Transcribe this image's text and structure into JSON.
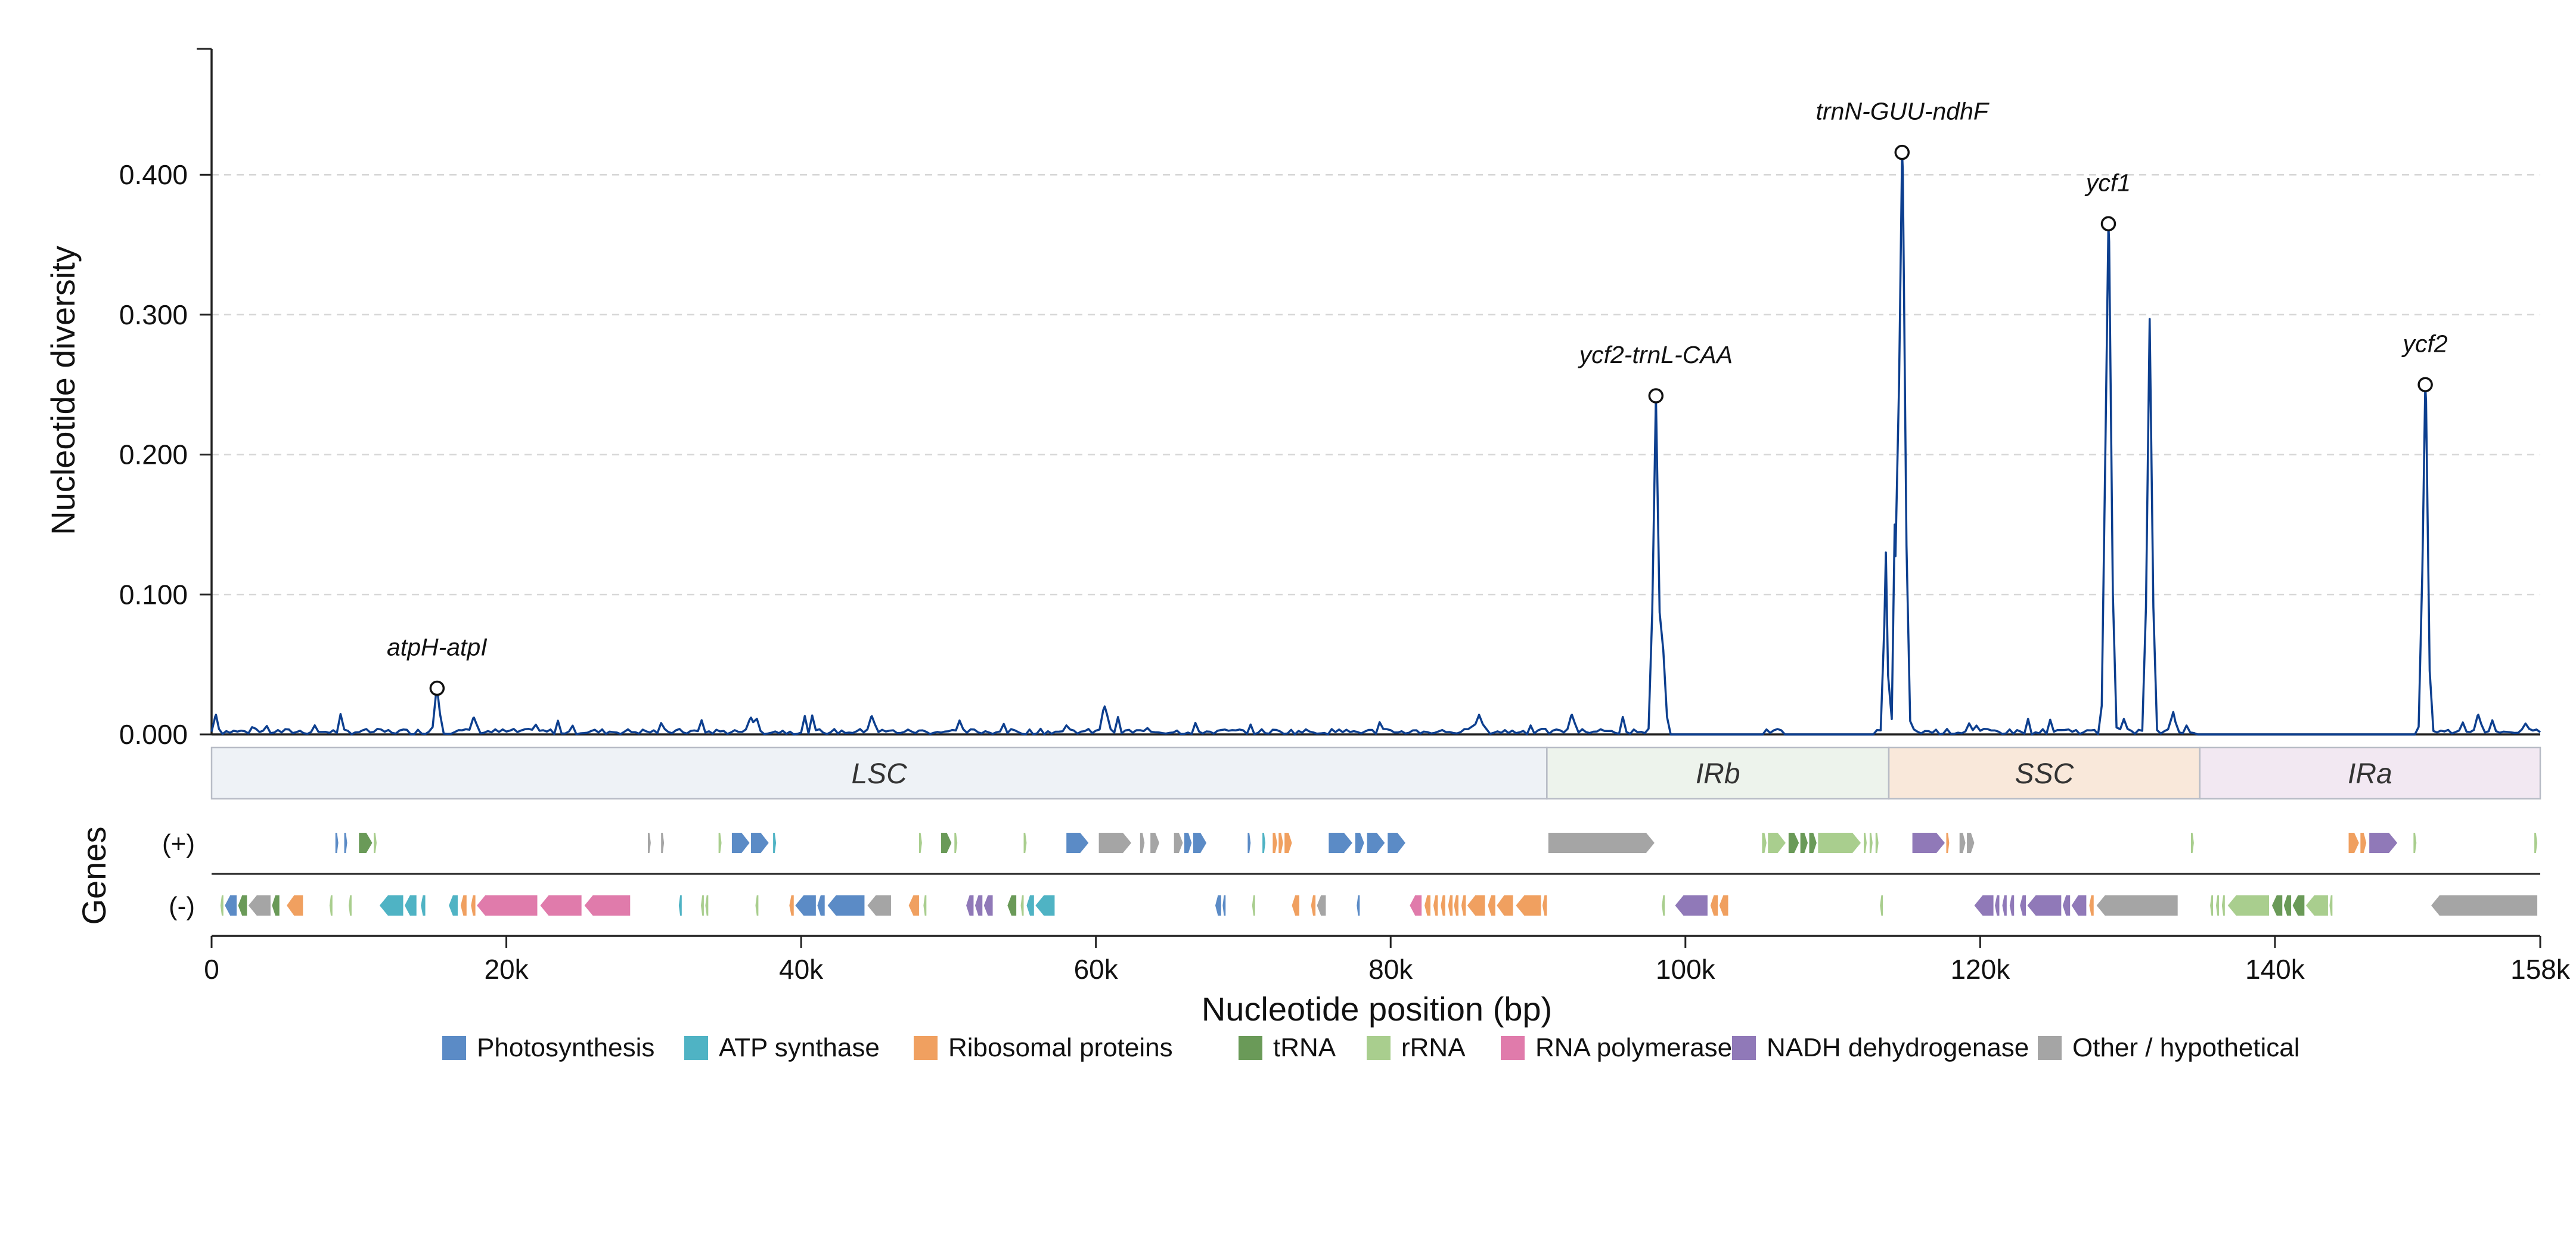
{
  "chart_data": {
    "type": "line",
    "xlabel": "Nucleotide position (bp)",
    "ylabel": "Nucleotide diversity",
    "xlim": [
      0,
      158000
    ],
    "ylim": [
      0,
      0.49
    ],
    "x_ticks": [
      {
        "value": 0,
        "label": "0"
      },
      {
        "value": 20000,
        "label": "20k"
      },
      {
        "value": 40000,
        "label": "40k"
      },
      {
        "value": 60000,
        "label": "60k"
      },
      {
        "value": 80000,
        "label": "80k"
      },
      {
        "value": 100000,
        "label": "100k"
      },
      {
        "value": 120000,
        "label": "120k"
      },
      {
        "value": 140000,
        "label": "140k"
      },
      {
        "value": 158000,
        "label": "158k"
      }
    ],
    "y_ticks": [
      {
        "value": 0.0,
        "label": "0.000"
      },
      {
        "value": 0.1,
        "label": "0.100"
      },
      {
        "value": 0.2,
        "label": "0.200"
      },
      {
        "value": 0.3,
        "label": "0.300"
      },
      {
        "value": 0.4,
        "label": "0.400"
      }
    ],
    "grid": "horizontal dashed",
    "line_color": "#0d3f8f",
    "series": [
      {
        "points": [
          [
            0,
            0.002
          ],
          [
            300,
            0.014
          ],
          [
            700,
            0.001
          ],
          [
            1500,
            0.0
          ],
          [
            2500,
            0.003
          ],
          [
            3500,
            0.0
          ],
          [
            4500,
            0.004
          ],
          [
            5500,
            0.001
          ],
          [
            6500,
            0.003
          ],
          [
            7500,
            0.0
          ],
          [
            8500,
            0.004
          ],
          [
            9500,
            0.001
          ],
          [
            10500,
            0.003
          ],
          [
            11500,
            0.0
          ],
          [
            12500,
            0.004
          ],
          [
            13500,
            0.001
          ],
          [
            14500,
            0.002
          ],
          [
            15000,
            0.004
          ],
          [
            15300,
            0.033
          ],
          [
            15600,
            0.03
          ],
          [
            15900,
            0.0
          ],
          [
            17000,
            0.001
          ],
          [
            17600,
            0.012
          ],
          [
            18000,
            0.011
          ],
          [
            18400,
            0.001
          ],
          [
            19500,
            0.004
          ],
          [
            20500,
            0.002
          ],
          [
            21500,
            0.005
          ],
          [
            22500,
            0.001
          ],
          [
            23500,
            0.004
          ],
          [
            24500,
            0.001
          ],
          [
            25500,
            0.003
          ],
          [
            26500,
            0.0
          ],
          [
            27500,
            0.004
          ],
          [
            28500,
            0.002
          ],
          [
            29500,
            0.0
          ],
          [
            30000,
            0.003
          ],
          [
            31000,
            0.006
          ],
          [
            32000,
            0.002
          ],
          [
            33000,
            0.007
          ],
          [
            28800,
            0.002
          ],
          [
            29500,
            0.001
          ]
        ]
      }
    ],
    "peaks": [
      {
        "label": "atpH-atpI",
        "x": 15300,
        "y": 0.033
      },
      {
        "label": "ycf2-trnL-CAA",
        "x": 98000,
        "y": 0.242
      },
      {
        "label": "trnN-GUU-ndhF",
        "x": 114700,
        "y": 0.416
      },
      {
        "label": "ycf1",
        "x": 128700,
        "y": 0.365
      },
      {
        "label": "ycf2",
        "x": 150200,
        "y": 0.25
      }
    ],
    "regions": [
      {
        "label": "LSC",
        "start": 0,
        "end": 90600,
        "color": "#eef2f6"
      },
      {
        "label": "IRb",
        "start": 90600,
        "end": 113800,
        "color": "#edf3ec"
      },
      {
        "label": "SSC",
        "start": 113800,
        "end": 134900,
        "color": "#f9e8da"
      },
      {
        "label": "IRa",
        "start": 134900,
        "end": 158000,
        "color": "#f2e8f2"
      }
    ],
    "genes_axis_label": "Genes",
    "strands": {
      "plus": "(+)",
      "minus": "(-)"
    },
    "gene_categories": [
      {
        "name": "Photosynthesis",
        "color": "#5b8bc6"
      },
      {
        "name": "ATP synthase",
        "color": "#4fb3c4"
      },
      {
        "name": "Ribosomal proteins",
        "color": "#f0a060"
      },
      {
        "name": "tRNA",
        "color": "#6a9a58"
      },
      {
        "name": "rRNA",
        "color": "#a9ce8e"
      },
      {
        "name": "RNA polymerase",
        "color": "#e07bab"
      },
      {
        "name": "NADH dehydrogenase",
        "color": "#9079b8"
      },
      {
        "name": "Other / hypothetical",
        "color": "#a5a5a5"
      }
    ],
    "genes": [
      {
        "strand": "+",
        "start": 8400,
        "end": 8600,
        "cat": 0
      },
      {
        "strand": "+",
        "start": 9000,
        "end": 9200,
        "cat": 0
      },
      {
        "strand": "+",
        "start": 10000,
        "end": 10900,
        "cat": 3
      },
      {
        "strand": "+",
        "start": 11000,
        "end": 11200,
        "cat": 4
      },
      {
        "strand": "+",
        "start": 29600,
        "end": 29800,
        "cat": 7
      },
      {
        "strand": "+",
        "start": 30500,
        "end": 30700,
        "cat": 7
      },
      {
        "strand": "+",
        "start": 34400,
        "end": 34600,
        "cat": 4
      },
      {
        "strand": "+",
        "start": 35300,
        "end": 36500,
        "cat": 0
      },
      {
        "strand": "+",
        "start": 36600,
        "end": 37800,
        "cat": 0
      },
      {
        "strand": "+",
        "start": 38100,
        "end": 38300,
        "cat": 1
      },
      {
        "strand": "+",
        "start": 48000,
        "end": 48200,
        "cat": 4
      },
      {
        "strand": "+",
        "start": 49500,
        "end": 50200,
        "cat": 3
      },
      {
        "strand": "+",
        "start": 50400,
        "end": 50600,
        "cat": 4
      },
      {
        "strand": "+",
        "start": 55100,
        "end": 55300,
        "cat": 4
      },
      {
        "strand": "+",
        "start": 58000,
        "end": 59500,
        "cat": 0
      },
      {
        "strand": "+",
        "start": 60200,
        "end": 62400,
        "cat": 7
      },
      {
        "strand": "+",
        "start": 63000,
        "end": 63300,
        "cat": 7
      },
      {
        "strand": "+",
        "start": 63700,
        "end": 64300,
        "cat": 7
      },
      {
        "strand": "+",
        "start": 65300,
        "end": 65900,
        "cat": 7
      },
      {
        "strand": "+",
        "start": 66000,
        "end": 66500,
        "cat": 0
      },
      {
        "strand": "+",
        "start": 66600,
        "end": 67500,
        "cat": 0
      },
      {
        "strand": "+",
        "start": 70300,
        "end": 70500,
        "cat": 0
      },
      {
        "strand": "+",
        "start": 71300,
        "end": 71500,
        "cat": 1
      },
      {
        "strand": "+",
        "start": 72000,
        "end": 72300,
        "cat": 2
      },
      {
        "strand": "+",
        "start": 72400,
        "end": 72700,
        "cat": 2
      },
      {
        "strand": "+",
        "start": 72800,
        "end": 73300,
        "cat": 2
      },
      {
        "strand": "+",
        "start": 75800,
        "end": 77400,
        "cat": 0
      },
      {
        "strand": "+",
        "start": 77600,
        "end": 78200,
        "cat": 0
      },
      {
        "strand": "+",
        "start": 78400,
        "end": 79600,
        "cat": 0
      },
      {
        "strand": "+",
        "start": 79800,
        "end": 81000,
        "cat": 0
      },
      {
        "strand": "+",
        "start": 90700,
        "end": 97900,
        "cat": 7
      },
      {
        "strand": "+",
        "start": 105200,
        "end": 105500,
        "cat": 4
      },
      {
        "strand": "+",
        "start": 105600,
        "end": 106800,
        "cat": 4
      },
      {
        "strand": "+",
        "start": 107000,
        "end": 107700,
        "cat": 3
      },
      {
        "strand": "+",
        "start": 107800,
        "end": 108300,
        "cat": 3
      },
      {
        "strand": "+",
        "start": 108400,
        "end": 108900,
        "cat": 3
      },
      {
        "strand": "+",
        "start": 109000,
        "end": 111900,
        "cat": 4
      },
      {
        "strand": "+",
        "start": 112100,
        "end": 112300,
        "cat": 4
      },
      {
        "strand": "+",
        "start": 112500,
        "end": 112700,
        "cat": 4
      },
      {
        "strand": "+",
        "start": 112900,
        "end": 113100,
        "cat": 4
      },
      {
        "strand": "+",
        "start": 115400,
        "end": 117600,
        "cat": 6
      },
      {
        "strand": "+",
        "start": 117700,
        "end": 117900,
        "cat": 2
      },
      {
        "strand": "+",
        "start": 118600,
        "end": 119000,
        "cat": 7
      },
      {
        "strand": "+",
        "start": 119100,
        "end": 119600,
        "cat": 7
      },
      {
        "strand": "+",
        "start": 134300,
        "end": 134500,
        "cat": 4
      },
      {
        "strand": "+",
        "start": 145000,
        "end": 145700,
        "cat": 2
      },
      {
        "strand": "+",
        "start": 145800,
        "end": 146200,
        "cat": 2
      },
      {
        "strand": "+",
        "start": 146400,
        "end": 148300,
        "cat": 6
      },
      {
        "strand": "+",
        "start": 149400,
        "end": 149600,
        "cat": 4
      },
      {
        "strand": "+",
        "start": 157600,
        "end": 157800,
        "cat": 4
      },
      {
        "strand": "-",
        "start": 600,
        "end": 800,
        "cat": 4
      },
      {
        "strand": "-",
        "start": 900,
        "end": 1700,
        "cat": 0
      },
      {
        "strand": "-",
        "start": 1800,
        "end": 2400,
        "cat": 3
      },
      {
        "strand": "-",
        "start": 2500,
        "end": 4000,
        "cat": 7
      },
      {
        "strand": "-",
        "start": 4100,
        "end": 4600,
        "cat": 3
      },
      {
        "strand": "-",
        "start": 5100,
        "end": 6200,
        "cat": 2
      },
      {
        "strand": "-",
        "start": 8000,
        "end": 8200,
        "cat": 4
      },
      {
        "strand": "-",
        "start": 9300,
        "end": 9500,
        "cat": 4
      },
      {
        "strand": "-",
        "start": 11400,
        "end": 13000,
        "cat": 1
      },
      {
        "strand": "-",
        "start": 13100,
        "end": 13900,
        "cat": 1
      },
      {
        "strand": "-",
        "start": 14200,
        "end": 14500,
        "cat": 1
      },
      {
        "strand": "-",
        "start": 16100,
        "end": 16700,
        "cat": 1
      },
      {
        "strand": "-",
        "start": 16900,
        "end": 17300,
        "cat": 2
      },
      {
        "strand": "-",
        "start": 17600,
        "end": 17900,
        "cat": 2
      },
      {
        "strand": "-",
        "start": 18000,
        "end": 22100,
        "cat": 5
      },
      {
        "strand": "-",
        "start": 22300,
        "end": 25100,
        "cat": 5
      },
      {
        "strand": "-",
        "start": 25300,
        "end": 28400,
        "cat": 5
      },
      {
        "strand": "-",
        "start": 31700,
        "end": 31900,
        "cat": 1
      },
      {
        "strand": "-",
        "start": 33200,
        "end": 33400,
        "cat": 4
      },
      {
        "strand": "-",
        "start": 33500,
        "end": 33700,
        "cat": 4
      },
      {
        "strand": "-",
        "start": 36900,
        "end": 37100,
        "cat": 4
      },
      {
        "strand": "-",
        "start": 39200,
        "end": 39500,
        "cat": 2
      },
      {
        "strand": "-",
        "start": 39600,
        "end": 41000,
        "cat": 0
      },
      {
        "strand": "-",
        "start": 41100,
        "end": 41600,
        "cat": 0
      },
      {
        "strand": "-",
        "start": 41800,
        "end": 44300,
        "cat": 0
      },
      {
        "strand": "-",
        "start": 44500,
        "end": 46100,
        "cat": 7
      },
      {
        "strand": "-",
        "start": 47300,
        "end": 48000,
        "cat": 2
      },
      {
        "strand": "-",
        "start": 48300,
        "end": 48500,
        "cat": 4
      },
      {
        "strand": "-",
        "start": 51200,
        "end": 51700,
        "cat": 6
      },
      {
        "strand": "-",
        "start": 51800,
        "end": 52300,
        "cat": 6
      },
      {
        "strand": "-",
        "start": 52400,
        "end": 53000,
        "cat": 6
      },
      {
        "strand": "-",
        "start": 54000,
        "end": 54600,
        "cat": 3
      },
      {
        "strand": "-",
        "start": 54900,
        "end": 55100,
        "cat": 4
      },
      {
        "strand": "-",
        "start": 55300,
        "end": 55800,
        "cat": 1
      },
      {
        "strand": "-",
        "start": 55900,
        "end": 57200,
        "cat": 1
      },
      {
        "strand": "-",
        "start": 68100,
        "end": 68500,
        "cat": 0
      },
      {
        "strand": "-",
        "start": 68600,
        "end": 68800,
        "cat": 0
      },
      {
        "strand": "-",
        "start": 70600,
        "end": 70800,
        "cat": 4
      },
      {
        "strand": "-",
        "start": 73300,
        "end": 73800,
        "cat": 2
      },
      {
        "strand": "-",
        "start": 74600,
        "end": 74900,
        "cat": 2
      },
      {
        "strand": "-",
        "start": 75000,
        "end": 75600,
        "cat": 7
      },
      {
        "strand": "-",
        "start": 77700,
        "end": 77900,
        "cat": 0
      },
      {
        "strand": "-",
        "start": 81300,
        "end": 82100,
        "cat": 5
      },
      {
        "strand": "-",
        "start": 82300,
        "end": 82700,
        "cat": 2
      },
      {
        "strand": "-",
        "start": 82900,
        "end": 83200,
        "cat": 2
      },
      {
        "strand": "-",
        "start": 83400,
        "end": 83700,
        "cat": 2
      },
      {
        "strand": "-",
        "start": 83900,
        "end": 84200,
        "cat": 2
      },
      {
        "strand": "-",
        "start": 84300,
        "end": 84600,
        "cat": 2
      },
      {
        "strand": "-",
        "start": 84800,
        "end": 85100,
        "cat": 2
      },
      {
        "strand": "-",
        "start": 85200,
        "end": 86400,
        "cat": 2
      },
      {
        "strand": "-",
        "start": 86600,
        "end": 87100,
        "cat": 2
      },
      {
        "strand": "-",
        "start": 87200,
        "end": 88300,
        "cat": 2
      },
      {
        "strand": "-",
        "start": 88500,
        "end": 90200,
        "cat": 2
      },
      {
        "strand": "-",
        "start": 90300,
        "end": 90600,
        "cat": 2
      },
      {
        "strand": "-",
        "start": 98400,
        "end": 98600,
        "cat": 4
      },
      {
        "strand": "-",
        "start": 99300,
        "end": 101500,
        "cat": 6
      },
      {
        "strand": "-",
        "start": 101700,
        "end": 102200,
        "cat": 2
      },
      {
        "strand": "-",
        "start": 102300,
        "end": 102900,
        "cat": 2
      },
      {
        "strand": "-",
        "start": 113200,
        "end": 113400,
        "cat": 4
      },
      {
        "strand": "-",
        "start": 119600,
        "end": 120900,
        "cat": 6
      },
      {
        "strand": "-",
        "start": 121000,
        "end": 121300,
        "cat": 6
      },
      {
        "strand": "-",
        "start": 121500,
        "end": 121800,
        "cat": 6
      },
      {
        "strand": "-",
        "start": 122000,
        "end": 122300,
        "cat": 6
      },
      {
        "strand": "-",
        "start": 122700,
        "end": 123100,
        "cat": 6
      },
      {
        "strand": "-",
        "start": 123200,
        "end": 125500,
        "cat": 6
      },
      {
        "strand": "-",
        "start": 125600,
        "end": 126100,
        "cat": 6
      },
      {
        "strand": "-",
        "start": 126200,
        "end": 127200,
        "cat": 6
      },
      {
        "strand": "-",
        "start": 127400,
        "end": 127700,
        "cat": 2
      },
      {
        "strand": "-",
        "start": 127900,
        "end": 133400,
        "cat": 7
      },
      {
        "strand": "-",
        "start": 135600,
        "end": 135800,
        "cat": 4
      },
      {
        "strand": "-",
        "start": 136000,
        "end": 136200,
        "cat": 4
      },
      {
        "strand": "-",
        "start": 136400,
        "end": 136600,
        "cat": 4
      },
      {
        "strand": "-",
        "start": 136800,
        "end": 139600,
        "cat": 4
      },
      {
        "strand": "-",
        "start": 139800,
        "end": 140500,
        "cat": 3
      },
      {
        "strand": "-",
        "start": 140600,
        "end": 141100,
        "cat": 3
      },
      {
        "strand": "-",
        "start": 141200,
        "end": 142000,
        "cat": 3
      },
      {
        "strand": "-",
        "start": 142100,
        "end": 143600,
        "cat": 4
      },
      {
        "strand": "-",
        "start": 143700,
        "end": 143900,
        "cat": 4
      },
      {
        "strand": "-",
        "start": 150600,
        "end": 157800,
        "cat": 7
      }
    ]
  }
}
